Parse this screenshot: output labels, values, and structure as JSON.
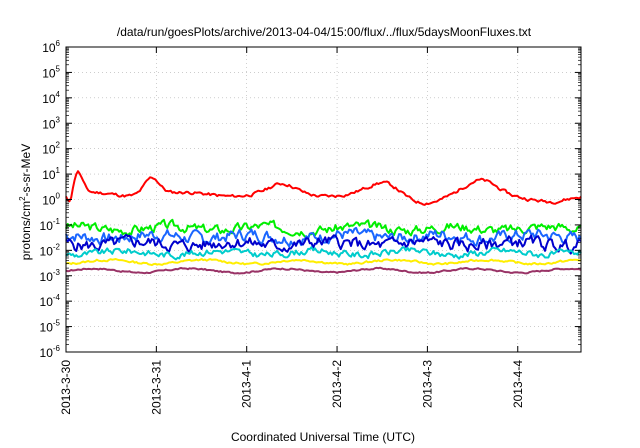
{
  "chart_data": {
    "type": "line",
    "title": "/data/run/goesPlots/archive/2013-04-04/15:00/flux/../flux/5daysMoonFluxes.txt",
    "xlabel": "Coordinated Universal Time (UTC)",
    "ylabel_main": "protons/cm",
    "ylabel_sup": "2",
    "ylabel_rest": "-s-sr-MeV",
    "yscale": "log",
    "ylim_exp": [
      -6,
      6
    ],
    "ytick_base": "10",
    "ytick_exponents": [
      "-6",
      "-5",
      "-4",
      "-3",
      "-2",
      "-1",
      "0",
      "1",
      "2",
      "3",
      "4",
      "5",
      "6"
    ],
    "xlim_days": [
      0,
      5.7
    ],
    "xtick_labels": [
      "2013-3-30",
      "2013-3-31",
      "2013-4-1",
      "2013-4-2",
      "2013-4-3",
      "2013-4-4"
    ],
    "grid": true,
    "legend": "none",
    "series": [
      {
        "color": "#ff0000",
        "level": 1.6,
        "noise": 0.12,
        "seed": 11,
        "bumps": [
          [
            0.12,
            8,
            0.08
          ],
          [
            0.95,
            5,
            0.12
          ],
          [
            2.4,
            2.2,
            0.2
          ],
          [
            3.55,
            3.3,
            0.25
          ],
          [
            4.6,
            3.3,
            0.25
          ]
        ],
        "dips": [
          [
            0.05,
            0.25,
            0.05
          ],
          [
            3.9,
            0.5,
            0.4
          ],
          [
            5.4,
            0.45,
            0.3
          ]
        ]
      },
      {
        "color": "#00ee00",
        "level": 0.075,
        "noise": 0.35,
        "seed": 3
      },
      {
        "color": "#1a66ff",
        "level": 0.035,
        "noise": 0.45,
        "seed": 7
      },
      {
        "color": "#0000cc",
        "level": 0.018,
        "noise": 0.45,
        "seed": 5
      },
      {
        "color": "#00cccc",
        "level": 0.008,
        "noise": 0.25,
        "seed": 9
      },
      {
        "color": "#ffee00",
        "level": 0.0035,
        "noise": 0.08,
        "seed": 13
      },
      {
        "color": "#993366",
        "level": 0.0016,
        "noise": 0.06,
        "seed": 17
      }
    ]
  }
}
